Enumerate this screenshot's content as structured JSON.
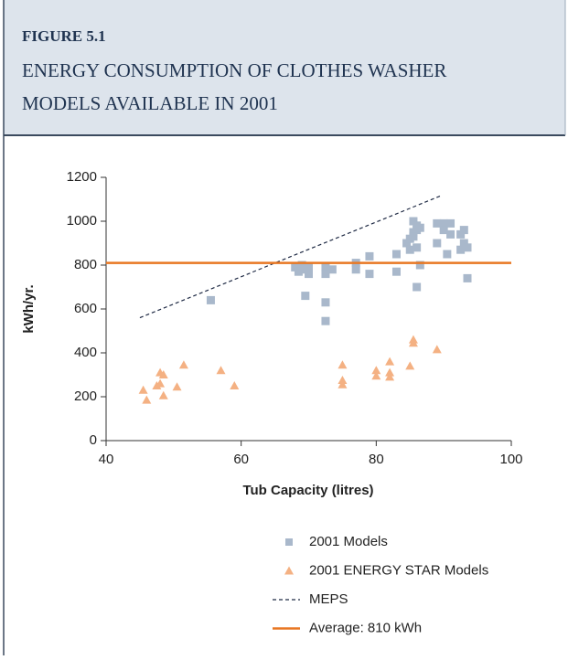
{
  "header": {
    "label": "FIGURE 5.1",
    "title_lines": [
      "ENERGY CONSUMPTION OF CLOTHES WASHER",
      "MODELS AVAILABLE IN 2001"
    ]
  },
  "chart_data": {
    "type": "scatter",
    "xlabel": "Tub Capacity (litres)",
    "ylabel": "kWh/yr.",
    "xlim": [
      40,
      100
    ],
    "xticks": [
      40,
      60,
      80,
      100
    ],
    "ylim": [
      0,
      1200
    ],
    "yticks": [
      0,
      200,
      400,
      600,
      800,
      1000,
      1200
    ],
    "grid": false,
    "series": [
      {
        "name": "2001 Models",
        "marker": "square",
        "color": "#a9b8cb",
        "x": [
          55.5,
          68,
          69,
          69,
          70,
          70,
          69.5,
          68.5,
          72.5,
          72.5,
          72.5,
          72.5,
          73.5,
          77,
          77,
          79,
          79,
          83,
          83,
          84.5,
          85,
          85.5,
          85.5,
          86,
          86,
          86,
          86.5,
          85,
          86,
          86.5,
          85.5,
          89,
          90,
          91,
          90,
          89,
          90.5,
          91,
          92.5,
          93,
          93,
          93.5,
          93.5,
          92.5
        ],
        "values": [
          640,
          790,
          780,
          800,
          760,
          790,
          660,
          770,
          790,
          760,
          630,
          545,
          780,
          810,
          780,
          840,
          760,
          850,
          770,
          900,
          920,
          1000,
          950,
          980,
          960,
          880,
          970,
          870,
          700,
          800,
          930,
          990,
          990,
          990,
          960,
          900,
          850,
          940,
          870,
          960,
          900,
          880,
          740,
          940
        ]
      },
      {
        "name": "2001 ENERGY STAR Models",
        "marker": "triangle",
        "color": "#f4b183",
        "x": [
          45.5,
          46,
          47.5,
          48,
          48,
          48.5,
          48.5,
          50.5,
          51.5,
          57,
          59,
          75,
          75,
          75,
          80,
          80,
          82,
          82,
          82,
          85,
          85.5,
          85.5,
          89
        ],
        "values": [
          230,
          185,
          250,
          260,
          310,
          300,
          205,
          245,
          345,
          320,
          250,
          345,
          275,
          255,
          320,
          295,
          360,
          310,
          290,
          340,
          460,
          445,
          415
        ]
      },
      {
        "name": "MEPS",
        "marker": "dashed-line",
        "color": "#1f2a44",
        "x": [
          45,
          89.5
        ],
        "values": [
          560,
          1115
        ]
      },
      {
        "name": "Average: 810 kWh",
        "marker": "line",
        "color": "#e87722",
        "x": [
          40,
          100
        ],
        "values": [
          810,
          810
        ]
      }
    ]
  }
}
